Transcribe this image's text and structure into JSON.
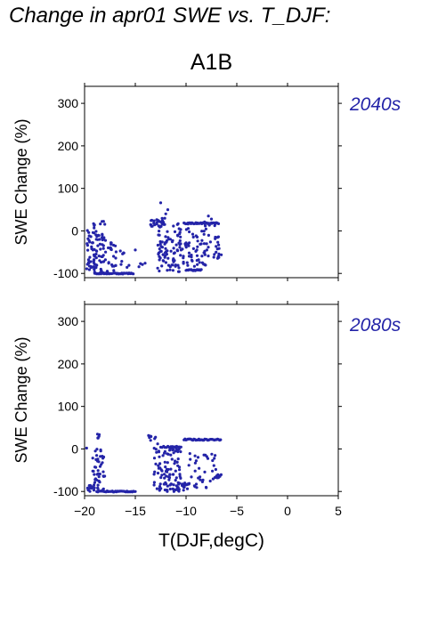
{
  "figure": {
    "title": "Change in apr01 SWE vs. T_DJF:",
    "scenario": "A1B",
    "point_color": "#2424a8",
    "label_color": "#2424a8"
  },
  "chart_data": [
    {
      "type": "scatter",
      "period_label": "2040s",
      "ylabel": "SWE Change (%)",
      "xlabel": "",
      "xlim": [
        -20,
        5
      ],
      "ylim": [
        -110,
        340
      ],
      "yticks": [
        -100,
        0,
        100,
        200,
        300
      ],
      "xticks": [
        -20,
        -15,
        -10,
        -5,
        0,
        5
      ],
      "show_xtick_labels": false,
      "grid": false,
      "clusters": [
        {
          "x": [
            -19.8,
            -19.0
          ],
          "y": [
            -95,
            20
          ],
          "n": 40
        },
        {
          "x": [
            -19.2,
            -18.0
          ],
          "y": [
            -100,
            25
          ],
          "n": 55
        },
        {
          "x": [
            -18.0,
            -16.8
          ],
          "y": [
            -95,
            -20
          ],
          "n": 25
        },
        {
          "x": [
            -16.5,
            -15.5
          ],
          "y": [
            -90,
            -45
          ],
          "n": 8
        },
        {
          "x": [
            -14.8,
            -14.0
          ],
          "y": [
            -85,
            -70
          ],
          "n": 4
        },
        {
          "x": [
            -13.5,
            -12.0
          ],
          "y": [
            10,
            30
          ],
          "n": 25
        },
        {
          "x": [
            -12.8,
            -10.5
          ],
          "y": [
            -100,
            20
          ],
          "n": 90
        },
        {
          "x": [
            -10.5,
            -8.0
          ],
          "y": [
            -95,
            -25
          ],
          "n": 40
        },
        {
          "x": [
            -10.0,
            -7.0
          ],
          "y": [
            -70,
            25
          ],
          "n": 40
        },
        {
          "x": [
            -7.0,
            -6.5
          ],
          "y": [
            -65,
            0
          ],
          "n": 12
        }
      ],
      "bands": [
        {
          "x": [
            -19.0,
            -15.2
          ],
          "y": -100,
          "n": 38
        },
        {
          "x": [
            -10.2,
            -6.8
          ],
          "y": 18,
          "n": 36
        },
        {
          "x": [
            -10.0,
            -8.5
          ],
          "y": -92,
          "n": 16
        }
      ],
      "points": [
        {
          "x": -12.5,
          "y": 66
        },
        {
          "x": -11.8,
          "y": 50
        },
        {
          "x": -12.0,
          "y": 40
        },
        {
          "x": -7.8,
          "y": 35
        },
        {
          "x": -7.5,
          "y": 28
        },
        {
          "x": -15.0,
          "y": -45
        }
      ]
    },
    {
      "type": "scatter",
      "period_label": "2080s",
      "ylabel": "SWE Change (%)",
      "xlabel": "T(DJF,degC)",
      "xlim": [
        -20,
        5
      ],
      "ylim": [
        -110,
        340
      ],
      "yticks": [
        -100,
        0,
        100,
        200,
        300
      ],
      "xticks": [
        -20,
        -15,
        -10,
        -5,
        0,
        5
      ],
      "xtick_labels": [
        "−20",
        "−15",
        "−10",
        "−5",
        "0",
        "5"
      ],
      "show_xtick_labels": true,
      "grid": false,
      "clusters": [
        {
          "x": [
            -19.8,
            -19.0
          ],
          "y": [
            -100,
            -85
          ],
          "n": 15
        },
        {
          "x": [
            -19.2,
            -18.0
          ],
          "y": [
            -100,
            0
          ],
          "n": 45
        },
        {
          "x": [
            -18.8,
            -18.4
          ],
          "y": [
            25,
            35
          ],
          "n": 6
        },
        {
          "x": [
            -13.8,
            -13.0
          ],
          "y": [
            20,
            32
          ],
          "n": 8
        },
        {
          "x": [
            -13.2,
            -10.5
          ],
          "y": [
            -100,
            5
          ],
          "n": 100
        },
        {
          "x": [
            -11.5,
            -9.5
          ],
          "y": [
            -100,
            -80
          ],
          "n": 30
        },
        {
          "x": [
            -9.8,
            -7.0
          ],
          "y": [
            -95,
            -10
          ],
          "n": 35
        },
        {
          "x": [
            -7.2,
            -6.5
          ],
          "y": [
            -68,
            -58
          ],
          "n": 10
        }
      ],
      "bands": [
        {
          "x": [
            -18.8,
            -15.0
          ],
          "y": -100,
          "n": 38
        },
        {
          "x": [
            -10.2,
            -6.6
          ],
          "y": 22,
          "n": 38
        },
        {
          "x": [
            -12.5,
            -10.5
          ],
          "y": 5,
          "n": 15
        }
      ],
      "points": [
        {
          "x": -19.8,
          "y": 2
        },
        {
          "x": -18.6,
          "y": -30
        },
        {
          "x": -13.5,
          "y": 30
        },
        {
          "x": -12.8,
          "y": 12
        }
      ]
    }
  ]
}
